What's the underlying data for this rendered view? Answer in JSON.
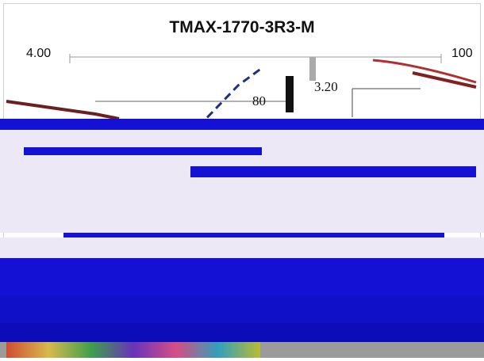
{
  "window": {
    "title": "TMAX-1770-3R3-M"
  },
  "chart": {
    "left_top_label": "4.00",
    "right_top_label": "100",
    "mid_label": "80",
    "right_mid_label": "3.20"
  },
  "colors": {
    "background": "#ffffff",
    "glitch_primary": "#1010d8",
    "glitch_secondary": "#e8e4f4",
    "curve_red": "#b03030",
    "curve_blue": "#2030a0",
    "axis": "#888888"
  },
  "icons": {
    "glitch_area": "corrupted-render-region"
  }
}
